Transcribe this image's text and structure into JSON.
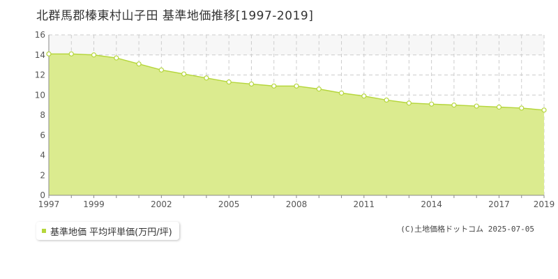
{
  "title": "北群馬郡榛東村山子田 基準地価推移[1997-2019]",
  "legend": {
    "label": "基準地価 平均坪単価(万円/坪)"
  },
  "copyright": "(C)土地価格ドットコム 2025-07-05",
  "colors": {
    "fill": "#dbeb8f",
    "line": "#b5d63b",
    "grid": "#cccccc",
    "axis": "#888888"
  },
  "chart_data": {
    "type": "area",
    "x": [
      1997,
      1998,
      1999,
      2000,
      2001,
      2002,
      2003,
      2004,
      2005,
      2006,
      2007,
      2008,
      2009,
      2010,
      2011,
      2012,
      2013,
      2014,
      2015,
      2016,
      2017,
      2018,
      2019
    ],
    "series": [
      {
        "values": [
          14.1,
          14.1,
          14.0,
          13.7,
          13.1,
          12.5,
          12.1,
          11.7,
          11.3,
          11.1,
          10.9,
          10.9,
          10.6,
          10.2,
          9.9,
          9.5,
          9.2,
          9.1,
          9.0,
          8.9,
          8.8,
          8.7,
          8.5
        ]
      }
    ],
    "xtick_labels": [
      "1997",
      "1999",
      "2002",
      "2005",
      "2008",
      "2011",
      "2014",
      "2017",
      "2019"
    ],
    "yticks": [
      0,
      2,
      4,
      6,
      8,
      10,
      12,
      14,
      16
    ],
    "xlim": [
      1997,
      2019
    ],
    "ylim": [
      0,
      16
    ],
    "xlabel": "",
    "ylabel": "",
    "grid": true
  }
}
